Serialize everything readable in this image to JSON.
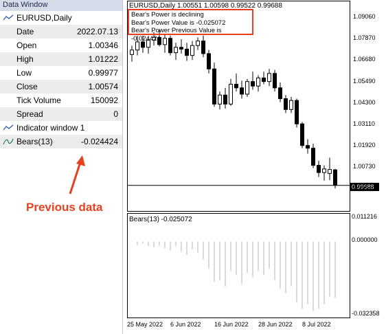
{
  "data_window": {
    "title": "Data Window",
    "symbol_label": "EURUSD,Daily",
    "rows": [
      {
        "label": "Date",
        "value": "2022.07.13"
      },
      {
        "label": "Open",
        "value": "1.00346"
      },
      {
        "label": "High",
        "value": "1.01222"
      },
      {
        "label": "Low",
        "value": "0.99977"
      },
      {
        "label": "Close",
        "value": "1.00574"
      },
      {
        "label": "Tick Volume",
        "value": "150092"
      },
      {
        "label": "Spread",
        "value": "0"
      }
    ],
    "indicator_section": "Indicator window 1",
    "indicator": {
      "label": "Bears(13)",
      "value": "-0.024424"
    }
  },
  "annotation": {
    "text": "Previous data",
    "color": "#e8401e"
  },
  "chart": {
    "header": "EURUSD,Daily  1.00551 1.00598 0.99522 0.99688",
    "messages": [
      "Bear's Power is declining",
      "Bear's Power Value is -0.025072",
      "Bear's Power Previous Value is -0.024424"
    ],
    "sub_header": "Bears(13) -0.025072",
    "current_price": "0.99688",
    "main_price_labels": [
      "1.09060",
      "1.07870",
      "1.06680",
      "1.05490",
      "1.04300",
      "1.03110",
      "1.01920",
      "1.00730",
      "0.99540"
    ],
    "sub_price_labels": [
      "0.011216",
      "0.000000",
      "-0.032358"
    ],
    "date_labels": [
      "25 May 2022",
      "6 Jun 2022",
      "16 Jun 2022",
      "28 Jun 2022",
      "8 Jul 2022"
    ],
    "main_ylim": [
      0.9954,
      1.0906
    ],
    "sub_ylim": [
      -0.032358,
      0.011216
    ]
  },
  "chart_data": {
    "type": "candlestick",
    "candles": [
      {
        "o": 1.0695,
        "h": 1.0745,
        "l": 1.0655,
        "c": 1.072
      },
      {
        "o": 1.072,
        "h": 1.08,
        "l": 1.069,
        "c": 1.0765
      },
      {
        "o": 1.0765,
        "h": 1.08,
        "l": 1.0705,
        "c": 1.0735
      },
      {
        "o": 1.0735,
        "h": 1.079,
        "l": 1.07,
        "c": 1.0775
      },
      {
        "o": 1.0775,
        "h": 1.082,
        "l": 1.0745,
        "c": 1.079
      },
      {
        "o": 1.079,
        "h": 1.083,
        "l": 1.074,
        "c": 1.075
      },
      {
        "o": 1.075,
        "h": 1.081,
        "l": 1.0705,
        "c": 1.0785
      },
      {
        "o": 1.0785,
        "h": 1.08,
        "l": 1.069,
        "c": 1.0705
      },
      {
        "o": 1.0705,
        "h": 1.076,
        "l": 1.0665,
        "c": 1.0735
      },
      {
        "o": 1.0735,
        "h": 1.078,
        "l": 1.07,
        "c": 1.0725
      },
      {
        "o": 1.0725,
        "h": 1.076,
        "l": 1.066,
        "c": 1.069
      },
      {
        "o": 1.069,
        "h": 1.077,
        "l": 1.0665,
        "c": 1.0745
      },
      {
        "o": 1.0745,
        "h": 1.079,
        "l": 1.072,
        "c": 1.077
      },
      {
        "o": 1.077,
        "h": 1.08,
        "l": 1.068,
        "c": 1.07
      },
      {
        "o": 1.07,
        "h": 1.072,
        "l": 1.059,
        "c": 1.0615
      },
      {
        "o": 1.0615,
        "h": 1.065,
        "l": 1.0405,
        "c": 1.042
      },
      {
        "o": 1.042,
        "h": 1.049,
        "l": 1.039,
        "c": 1.047
      },
      {
        "o": 1.047,
        "h": 1.051,
        "l": 1.0395,
        "c": 1.042
      },
      {
        "o": 1.042,
        "h": 1.056,
        "l": 1.041,
        "c": 1.053
      },
      {
        "o": 1.053,
        "h": 1.059,
        "l": 1.049,
        "c": 1.051
      },
      {
        "o": 1.051,
        "h": 1.055,
        "l": 1.045,
        "c": 1.0475
      },
      {
        "o": 1.0475,
        "h": 1.056,
        "l": 1.046,
        "c": 1.0545
      },
      {
        "o": 1.0545,
        "h": 1.06,
        "l": 1.05,
        "c": 1.052
      },
      {
        "o": 1.052,
        "h": 1.058,
        "l": 1.049,
        "c": 1.0565
      },
      {
        "o": 1.0565,
        "h": 1.06,
        "l": 1.053,
        "c": 1.0545
      },
      {
        "o": 1.0545,
        "h": 1.0615,
        "l": 1.052,
        "c": 1.059
      },
      {
        "o": 1.059,
        "h": 1.061,
        "l": 1.049,
        "c": 1.051
      },
      {
        "o": 1.051,
        "h": 1.054,
        "l": 1.043,
        "c": 1.045
      },
      {
        "o": 1.045,
        "h": 1.047,
        "l": 1.037,
        "c": 1.039
      },
      {
        "o": 1.039,
        "h": 1.046,
        "l": 1.037,
        "c": 1.044
      },
      {
        "o": 1.044,
        "h": 1.045,
        "l": 1.029,
        "c": 1.031
      },
      {
        "o": 1.031,
        "h": 1.032,
        "l": 1.0175,
        "c": 1.019
      },
      {
        "o": 1.019,
        "h": 1.0225,
        "l": 1.0145,
        "c": 1.0175
      },
      {
        "o": 1.0175,
        "h": 1.02,
        "l": 1.0065,
        "c": 1.008
      },
      {
        "o": 1.008,
        "h": 1.0105,
        "l": 1.0015,
        "c": 1.004
      },
      {
        "o": 1.004,
        "h": 1.008,
        "l": 0.9995,
        "c": 1.006
      },
      {
        "o": 1.0035,
        "h": 1.0122,
        "l": 0.9998,
        "c": 1.0057
      },
      {
        "o": 1.0055,
        "h": 1.006,
        "l": 0.9952,
        "c": 0.9969
      }
    ],
    "bears": [
      -0.0002,
      -0.0015,
      -0.0008,
      -0.002,
      -0.0025,
      -0.0018,
      -0.003,
      -0.004,
      -0.002,
      -0.0045,
      -0.006,
      -0.0035,
      -0.005,
      -0.008,
      -0.012,
      -0.018,
      -0.017,
      -0.02,
      -0.013,
      -0.015,
      -0.019,
      -0.014,
      -0.016,
      -0.013,
      -0.015,
      -0.012,
      -0.017,
      -0.021,
      -0.023,
      -0.02,
      -0.027,
      -0.03,
      -0.028,
      -0.031,
      -0.03,
      -0.028,
      -0.0244,
      -0.0251
    ]
  }
}
